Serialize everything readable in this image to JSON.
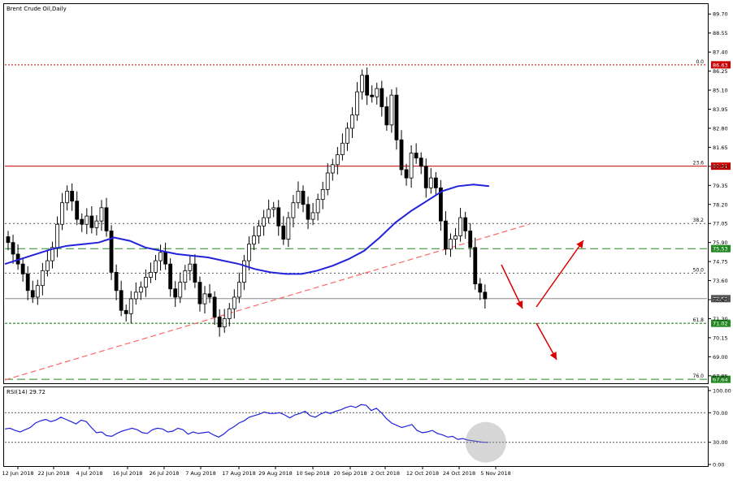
{
  "chart_title": "Brent Crude Oil,Daily",
  "rsi_label": "RSI(14) 29.72",
  "colors": {
    "background": "#ffffff",
    "candle": "#000000",
    "ma": "#2222dd",
    "red_level": "#cc0000",
    "green_level": "#228822",
    "trend": "#ff6666",
    "arrow": "#dd0000",
    "grid_dotted": "#555555"
  },
  "chart_data": [
    {
      "type": "candlestick",
      "title": "Brent Crude Oil,Daily",
      "y_ticks": [
        "89.70",
        "88.55",
        "87.40",
        "86.25",
        "85.10",
        "83.95",
        "82.80",
        "81.65",
        "80.50",
        "79.35",
        "78.20",
        "77.05",
        "75.90",
        "74.75",
        "73.60",
        "72.45",
        "71.30",
        "70.15",
        "69.00",
        "67.85"
      ],
      "ylim": [
        67.4,
        90.3
      ],
      "x_ticks": [
        "12 Jun 2018",
        "22 Jun 2018",
        "4 Jul 2018",
        "16 Jul 2018",
        "26 Jul 2018",
        "7 Aug 2018",
        "17 Aug 2018",
        "29 Aug 2018",
        "10 Sep 2018",
        "20 Sep 2018",
        "2 Oct 2018",
        "12 Oct 2018",
        "24 Oct 2018",
        "5 Nov 2018"
      ],
      "close_series": [
        75.9,
        75.2,
        74.6,
        74.0,
        73.0,
        72.6,
        73.3,
        74.2,
        74.8,
        75.6,
        77.0,
        78.3,
        79.0,
        78.4,
        77.3,
        77.0,
        77.5,
        76.8,
        77.2,
        78.0,
        76.6,
        74.1,
        73.0,
        71.8,
        71.6,
        72.5,
        72.9,
        73.2,
        73.8,
        74.1,
        74.8,
        75.3,
        74.6,
        73.1,
        72.6,
        73.5,
        74.2,
        74.6,
        73.5,
        72.2,
        72.8,
        72.6,
        71.4,
        70.8,
        71.3,
        71.9,
        72.6,
        73.5,
        74.8,
        75.8,
        76.3,
        76.9,
        77.4,
        77.9,
        78.0,
        76.9,
        76.1,
        77.4,
        78.3,
        79.0,
        78.2,
        77.3,
        77.7,
        78.5,
        79.1,
        80.1,
        80.6,
        81.2,
        81.9,
        82.8,
        83.6,
        85.0,
        86.0,
        84.8,
        84.7,
        85.2,
        84.1,
        83.0,
        84.8,
        82.1,
        80.3,
        79.8,
        81.3,
        81.0,
        80.5,
        79.2,
        79.8,
        79.2,
        77.2,
        75.5,
        76.1,
        76.3,
        77.4,
        76.6,
        75.6,
        73.4,
        72.9,
        72.5
      ],
      "moving_average": [
        74.6,
        74.9,
        75.2,
        75.5,
        75.7,
        75.8,
        75.9,
        76.2,
        76.0,
        75.6,
        75.4,
        75.2,
        75.1,
        75.0,
        74.8,
        74.6,
        74.3,
        74.1,
        74.0,
        74.0,
        74.2,
        74.5,
        74.9,
        75.4,
        76.2,
        77.1,
        77.8,
        78.4,
        79.0,
        79.3,
        79.4,
        79.3
      ],
      "levels": [
        {
          "fib": "0.0",
          "value": 86.63,
          "label": "86.63",
          "style": "red-dotted"
        },
        {
          "fib": "23.6",
          "value": 80.51,
          "label": "80.51",
          "style": "red-solid"
        },
        {
          "fib": "38.2",
          "value": 77.05,
          "label": "",
          "style": "gray-dotted"
        },
        {
          "fib": "",
          "value": 75.53,
          "label": "75.53",
          "style": "green-dashed"
        },
        {
          "fib": "50.0",
          "value": 74.05,
          "label": "",
          "style": "gray-dotted"
        },
        {
          "fib": "",
          "value": 72.51,
          "label": "72.51",
          "style": "gray-solid"
        },
        {
          "fib": "61.8",
          "value": 71.02,
          "label": "71.02",
          "style": "green-dashed-dotted"
        },
        {
          "fib": "76.0",
          "value": 67.64,
          "label": "67.64",
          "style": "green-dashed"
        }
      ],
      "trendline": {
        "from": [
          0,
          67.6
        ],
        "to": [
          106,
          77.0
        ]
      },
      "arrows": [
        "down",
        "up",
        "down"
      ]
    },
    {
      "type": "line",
      "title": "RSI(14) 29.72",
      "y_ticks": [
        "100.00",
        "70.00",
        "30.00",
        "0.00"
      ],
      "ylim": [
        0,
        100
      ],
      "levels": [
        70,
        30
      ],
      "values": [
        48,
        49,
        46,
        44,
        47,
        50,
        56,
        59,
        61,
        58,
        60,
        64,
        61,
        58,
        55,
        60,
        58,
        50,
        43,
        44,
        39,
        38,
        42,
        45,
        47,
        49,
        47,
        43,
        42,
        47,
        49,
        48,
        44,
        45,
        49,
        47,
        41,
        44,
        42,
        43,
        44,
        40,
        37,
        41,
        47,
        51,
        56,
        59,
        64,
        66,
        68,
        71,
        69,
        69,
        70,
        67,
        63,
        67,
        69,
        72,
        66,
        64,
        68,
        71,
        69,
        72,
        74,
        77,
        79,
        77,
        81,
        80,
        73,
        76,
        70,
        62,
        56,
        53,
        50,
        52,
        54,
        46,
        43,
        44,
        46,
        42,
        40,
        37,
        38,
        34,
        35,
        33,
        32,
        31,
        30,
        30
      ]
    }
  ]
}
